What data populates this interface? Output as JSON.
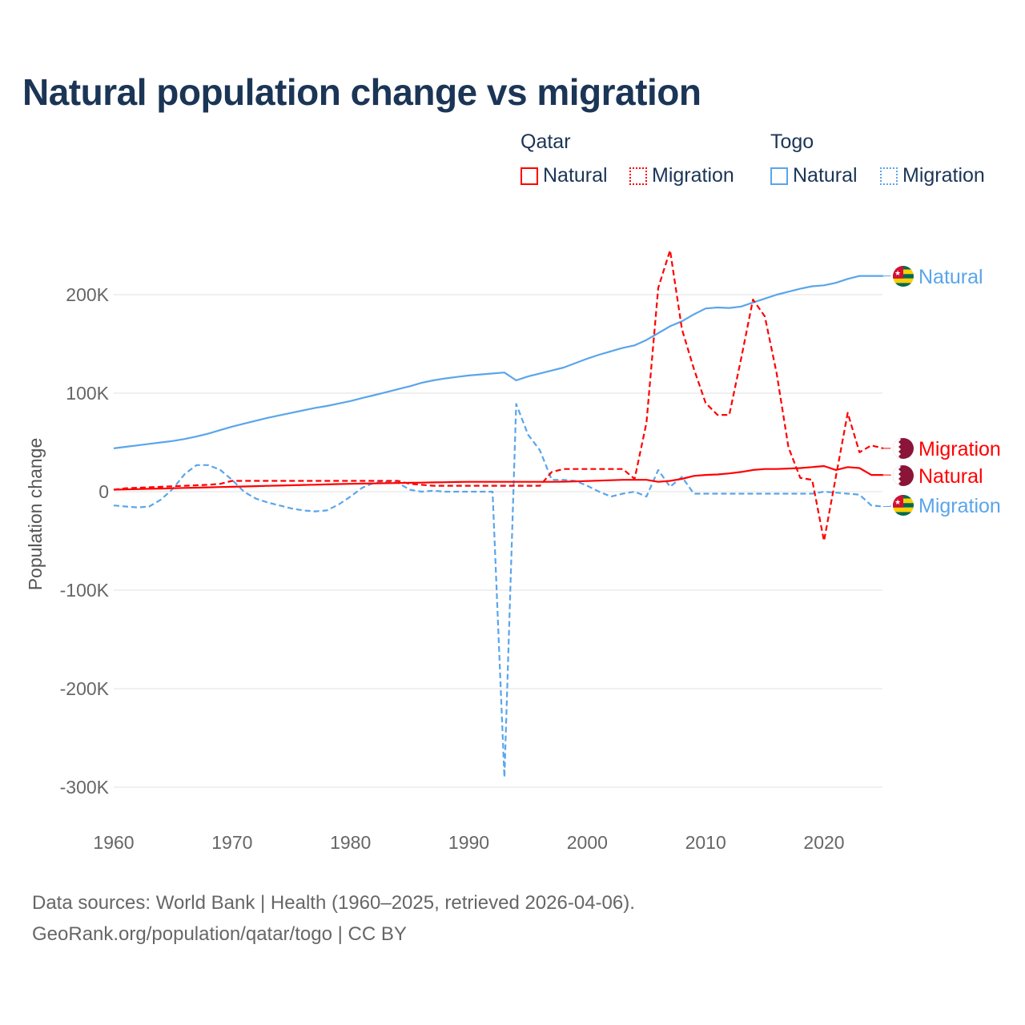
{
  "title": "Natural population change vs migration",
  "legend": {
    "groups": [
      {
        "name": "Qatar",
        "items": [
          {
            "label": "Natural",
            "color": "#ff0000",
            "style": "solid"
          },
          {
            "label": "Migration",
            "color": "#ff0000",
            "style": "dotted"
          }
        ]
      },
      {
        "name": "Togo",
        "items": [
          {
            "label": "Natural",
            "color": "#5aa5ea",
            "style": "solid"
          },
          {
            "label": "Migration",
            "color": "#5aa5ea",
            "style": "dotted"
          }
        ]
      }
    ]
  },
  "footer": {
    "line1": "Data sources: World Bank | Health (1960–2025, retrieved 2026-04-06).",
    "line2": "GeoRank.org/population/qatar/togo | CC BY"
  },
  "chart_data": {
    "type": "line",
    "title": "Natural population change vs migration",
    "xlabel": "",
    "ylabel": "Population change",
    "xlim": [
      1960,
      2025
    ],
    "ylim": [
      -300000,
      250000
    ],
    "xticks": [
      1960,
      1970,
      1980,
      1990,
      2000,
      2010,
      2020
    ],
    "xtick_labels": [
      "1960",
      "1970",
      "1980",
      "1990",
      "2000",
      "2010",
      "2020"
    ],
    "yticks": [
      -300000,
      -200000,
      -100000,
      0,
      100000,
      200000
    ],
    "ytick_labels": [
      "-300K",
      "-200K",
      "-100K",
      "0",
      "100K",
      "200K"
    ],
    "grid": true,
    "x_start": 1960,
    "series": [
      {
        "name": "Togo Natural",
        "country": "Togo",
        "kind": "Natural",
        "end_label": "Natural",
        "color": "#5aa5ea",
        "dash": false,
        "flag": "togo",
        "values_k": [
          44,
          45.5,
          47,
          48.5,
          50,
          51.5,
          53.5,
          56,
          59,
          62.5,
          66,
          69,
          72,
          75,
          77.5,
          80,
          82.5,
          85,
          87,
          89.5,
          92,
          95,
          98,
          101,
          104,
          107,
          110.5,
          113,
          115,
          116.5,
          118,
          119,
          120,
          121,
          113,
          117,
          120,
          123,
          126,
          130.5,
          135,
          139,
          142.5,
          146,
          148.5,
          154,
          161,
          168,
          173,
          180,
          186,
          187,
          186.5,
          188,
          192,
          196,
          200,
          203,
          206,
          208.5,
          209.5,
          212,
          216,
          219,
          219,
          219
        ]
      },
      {
        "name": "Togo Migration",
        "country": "Togo",
        "kind": "Migration",
        "end_label": "Migration",
        "color": "#5aa5ea",
        "dash": true,
        "flag": "togo",
        "values_k": [
          -14,
          -15,
          -16,
          -15,
          -8,
          3,
          18,
          27,
          27,
          22,
          12,
          0,
          -7,
          -11,
          -14,
          -17,
          -19,
          -20,
          -19,
          -13,
          -5,
          4,
          9,
          10,
          9,
          2,
          0,
          1,
          0,
          0,
          0,
          0,
          0,
          -290,
          89,
          58,
          42,
          12,
          12,
          11,
          6,
          0,
          -5,
          -2,
          0,
          -5,
          22,
          5,
          15,
          -2,
          -2,
          -2,
          -2,
          -2,
          -2,
          -2,
          -2,
          -2,
          -2,
          -2,
          0,
          -1,
          -2,
          -3,
          -14,
          -15
        ]
      },
      {
        "name": "Qatar Natural",
        "country": "Qatar",
        "kind": "Natural",
        "end_label": "Natural",
        "color": "#ff0000",
        "dash": false,
        "flag": "qatar",
        "values_k": [
          2,
          2.3,
          2.6,
          2.9,
          3.2,
          3.5,
          3.8,
          4.1,
          4.4,
          4.7,
          5,
          5.3,
          5.6,
          5.9,
          6.2,
          6.5,
          6.8,
          7.1,
          7.4,
          7.7,
          8,
          8.2,
          8.4,
          8.6,
          8.8,
          9,
          9.2,
          9.4,
          9.6,
          9.8,
          10,
          10,
          10,
          10,
          10,
          10,
          10,
          10,
          10.2,
          10.4,
          10.8,
          11.2,
          11.6,
          12,
          12,
          12,
          10,
          11,
          13,
          16,
          17,
          17.5,
          18.5,
          20,
          22,
          23,
          23,
          23.5,
          24,
          25,
          26,
          22,
          25,
          24,
          17,
          17
        ]
      },
      {
        "name": "Qatar Migration",
        "country": "Qatar",
        "kind": "Migration",
        "end_label": "Migration",
        "color": "#ff0000",
        "dash": true,
        "flag": "qatar",
        "values_k": [
          2,
          3.5,
          4,
          4.5,
          5,
          5.5,
          6,
          6.5,
          7,
          8,
          11,
          11,
          11,
          11,
          11,
          11,
          11,
          11,
          11,
          11,
          11,
          11,
          11,
          11,
          11,
          8,
          7,
          6,
          6,
          6,
          6,
          6,
          6,
          6,
          6,
          6,
          6,
          20,
          23,
          23,
          23,
          23,
          23,
          23,
          13,
          70,
          207,
          245,
          165,
          125,
          90,
          78,
          78,
          135,
          195,
          178,
          120,
          45,
          14,
          12,
          -50,
          15,
          80,
          40,
          47,
          44
        ]
      }
    ]
  }
}
